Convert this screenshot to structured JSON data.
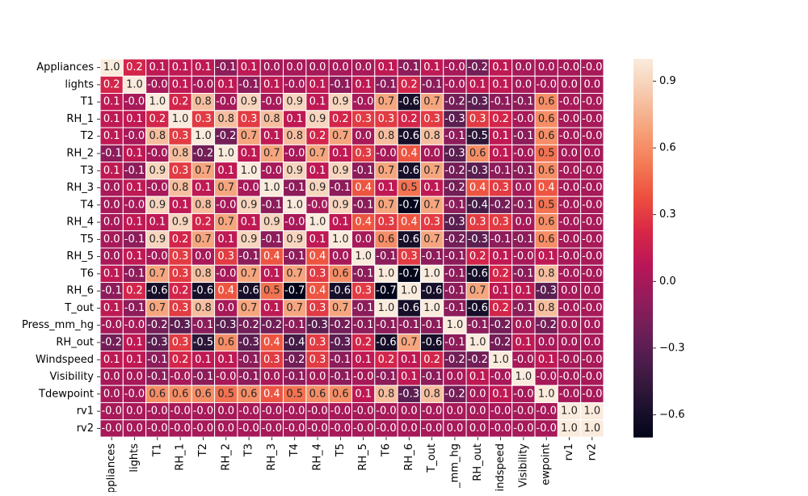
{
  "chart_data": {
    "type": "heatmap",
    "title": "",
    "xlabel": "",
    "ylabel": "",
    "row_labels": [
      "Appliances",
      "lights",
      "T1",
      "RH_1",
      "T2",
      "RH_2",
      "T3",
      "RH_3",
      "T4",
      "RH_4",
      "T5",
      "RH_5",
      "T6",
      "RH_6",
      "T_out",
      "Press_mm_hg",
      "RH_out",
      "Windspeed",
      "Visibility",
      "Tdewpoint",
      "rv1",
      "rv2"
    ],
    "col_labels": [
      "Appliances",
      "lights",
      "T1",
      "RH_1",
      "T2",
      "RH_2",
      "T3",
      "RH_3",
      "T4",
      "RH_4",
      "T5",
      "RH_5",
      "T6",
      "RH_6",
      "T_out",
      "Press_mm_hg",
      "RH_out",
      "Windspeed",
      "Visibility",
      "Tdewpoint",
      "rv1",
      "rv2"
    ],
    "col_tick_texts": [
      "ppliances",
      "lights",
      "T1",
      "RH_1",
      "T2",
      "RH_2",
      "T3",
      "RH_3",
      "T4",
      "RH_4",
      "T5",
      "RH_5",
      "T6",
      "RH_6",
      "T_out",
      "_mm_hg",
      "RH_out",
      "indspeed",
      "Visibility",
      "ewpoint",
      "rv1",
      "rv2"
    ],
    "values": [
      [
        1.0,
        0.2,
        0.1,
        0.1,
        0.1,
        -0.1,
        0.1,
        0.0,
        0.0,
        0.0,
        0.0,
        0.0,
        0.1,
        -0.1,
        0.1,
        -0.0,
        -0.2,
        0.1,
        0.0,
        0.0,
        -0.0,
        -0.0
      ],
      [
        0.2,
        1.0,
        -0.0,
        0.1,
        -0.0,
        0.1,
        -0.1,
        0.1,
        -0.0,
        0.1,
        -0.1,
        0.1,
        -0.1,
        0.2,
        -0.1,
        -0.0,
        0.1,
        0.1,
        0.0,
        -0.0,
        0.0,
        0.0
      ],
      [
        0.1,
        -0.0,
        1.0,
        0.2,
        0.8,
        -0.0,
        0.9,
        -0.0,
        0.9,
        0.1,
        0.9,
        -0.0,
        0.7,
        -0.6,
        0.7,
        -0.2,
        -0.3,
        -0.1,
        -0.1,
        0.6,
        -0.0,
        -0.0
      ],
      [
        0.1,
        0.1,
        0.2,
        1.0,
        0.3,
        0.8,
        0.3,
        0.8,
        0.1,
        0.9,
        0.2,
        0.3,
        0.3,
        0.2,
        0.3,
        -0.3,
        0.3,
        0.2,
        -0.0,
        0.6,
        -0.0,
        -0.0
      ],
      [
        0.1,
        -0.0,
        0.8,
        0.3,
        1.0,
        -0.2,
        0.7,
        0.1,
        0.8,
        0.2,
        0.7,
        0.0,
        0.8,
        -0.6,
        0.8,
        -0.1,
        -0.5,
        0.1,
        -0.1,
        0.6,
        -0.0,
        -0.0
      ],
      [
        -0.1,
        0.1,
        -0.0,
        0.8,
        -0.2,
        1.0,
        0.1,
        0.7,
        -0.0,
        0.7,
        0.1,
        0.3,
        -0.0,
        0.4,
        0.0,
        -0.3,
        0.6,
        0.1,
        -0.0,
        0.5,
        0.0,
        0.0
      ],
      [
        0.1,
        -0.1,
        0.9,
        0.3,
        0.7,
        0.1,
        1.0,
        -0.0,
        0.9,
        0.1,
        0.9,
        -0.1,
        0.7,
        -0.6,
        0.7,
        -0.2,
        -0.3,
        -0.1,
        -0.1,
        0.6,
        -0.0,
        -0.0
      ],
      [
        0.0,
        0.1,
        -0.0,
        0.8,
        0.1,
        0.7,
        -0.0,
        1.0,
        -0.1,
        0.9,
        -0.1,
        0.4,
        0.1,
        0.5,
        0.1,
        -0.2,
        0.4,
        0.3,
        0.0,
        0.4,
        -0.0,
        -0.0
      ],
      [
        0.0,
        -0.0,
        0.9,
        0.1,
        0.8,
        -0.0,
        0.9,
        -0.1,
        1.0,
        -0.0,
        0.9,
        -0.1,
        0.7,
        -0.7,
        0.7,
        -0.1,
        -0.4,
        -0.2,
        -0.1,
        0.5,
        -0.0,
        -0.0
      ],
      [
        0.0,
        0.1,
        0.1,
        0.9,
        0.2,
        0.7,
        0.1,
        0.9,
        -0.0,
        1.0,
        0.1,
        0.4,
        0.3,
        0.4,
        0.3,
        -0.3,
        0.3,
        0.3,
        0.0,
        0.6,
        -0.0,
        -0.0
      ],
      [
        0.0,
        -0.1,
        0.9,
        0.2,
        0.7,
        0.1,
        0.9,
        -0.1,
        0.9,
        0.1,
        1.0,
        0.0,
        0.6,
        -0.6,
        0.7,
        -0.2,
        -0.3,
        -0.1,
        -0.1,
        0.6,
        -0.0,
        -0.0
      ],
      [
        0.0,
        0.1,
        -0.0,
        0.3,
        0.0,
        0.3,
        -0.1,
        0.4,
        -0.1,
        0.4,
        0.0,
        1.0,
        -0.1,
        0.3,
        -0.1,
        -0.1,
        0.2,
        0.1,
        -0.0,
        0.1,
        -0.0,
        -0.0
      ],
      [
        0.1,
        -0.1,
        0.7,
        0.3,
        0.8,
        -0.0,
        0.7,
        0.1,
        0.7,
        0.3,
        0.6,
        -0.1,
        1.0,
        -0.7,
        1.0,
        -0.1,
        -0.6,
        0.2,
        -0.1,
        0.8,
        -0.0,
        -0.0
      ],
      [
        -0.1,
        0.2,
        -0.6,
        0.2,
        -0.6,
        0.4,
        -0.6,
        0.5,
        -0.7,
        0.4,
        -0.6,
        0.3,
        -0.7,
        1.0,
        -0.6,
        -0.1,
        0.7,
        0.1,
        0.1,
        -0.3,
        0.0,
        0.0
      ],
      [
        0.1,
        -0.1,
        0.7,
        0.3,
        0.8,
        0.0,
        0.7,
        0.1,
        0.7,
        0.3,
        0.7,
        -0.1,
        1.0,
        -0.6,
        1.0,
        -0.1,
        -0.6,
        0.2,
        -0.1,
        0.8,
        -0.0,
        -0.0
      ],
      [
        -0.0,
        -0.0,
        -0.2,
        -0.3,
        -0.1,
        -0.3,
        -0.2,
        -0.2,
        -0.1,
        -0.3,
        -0.2,
        -0.1,
        -0.1,
        -0.1,
        -0.1,
        1.0,
        -0.1,
        -0.2,
        0.0,
        -0.2,
        0.0,
        0.0
      ],
      [
        -0.2,
        0.1,
        -0.3,
        0.3,
        -0.5,
        0.6,
        -0.3,
        0.4,
        -0.4,
        0.3,
        -0.3,
        0.2,
        -0.6,
        0.7,
        -0.6,
        -0.1,
        1.0,
        -0.2,
        0.1,
        0.0,
        0.0,
        0.0
      ],
      [
        0.1,
        0.1,
        -0.1,
        0.2,
        0.1,
        0.1,
        -0.1,
        0.3,
        -0.2,
        0.3,
        -0.1,
        0.1,
        0.2,
        0.1,
        0.2,
        -0.2,
        -0.2,
        1.0,
        -0.0,
        0.1,
        -0.0,
        -0.0
      ],
      [
        0.0,
        0.0,
        -0.1,
        -0.0,
        -0.1,
        -0.0,
        -0.1,
        0.0,
        -0.1,
        0.0,
        -0.1,
        -0.0,
        -0.1,
        0.1,
        -0.1,
        0.0,
        0.1,
        -0.0,
        1.0,
        -0.0,
        -0.0,
        -0.0
      ],
      [
        0.0,
        -0.0,
        0.6,
        0.6,
        0.6,
        0.5,
        0.6,
        0.4,
        0.5,
        0.6,
        0.6,
        0.1,
        0.8,
        -0.3,
        0.8,
        -0.2,
        0.0,
        0.1,
        -0.0,
        1.0,
        -0.0,
        -0.0
      ],
      [
        -0.0,
        0.0,
        -0.0,
        -0.0,
        -0.0,
        0.0,
        -0.0,
        -0.0,
        -0.0,
        -0.0,
        -0.0,
        -0.0,
        -0.0,
        0.0,
        -0.0,
        0.0,
        0.0,
        -0.0,
        -0.0,
        -0.0,
        1.0,
        1.0
      ],
      [
        -0.0,
        0.0,
        -0.0,
        -0.0,
        -0.0,
        0.0,
        -0.0,
        -0.0,
        -0.0,
        -0.0,
        -0.0,
        -0.0,
        -0.0,
        0.0,
        -0.0,
        0.0,
        0.0,
        -0.0,
        -0.0,
        -0.0,
        1.0,
        1.0
      ]
    ],
    "colorbar": {
      "vmin": -0.7,
      "vmax": 1.0,
      "ticks": [
        -0.6,
        -0.3,
        0.0,
        0.3,
        0.6,
        0.9
      ],
      "tick_labels": [
        "−0.6",
        "−0.3",
        "0.0",
        "0.3",
        "0.6",
        "0.9"
      ],
      "colormap": "rocket",
      "colormap_stops": [
        "#03051a",
        "#221331",
        "#451c47",
        "#6a1f56",
        "#921c5b",
        "#b91657",
        "#d92847",
        "#ed503e",
        "#f47d57",
        "#f6a47c",
        "#f6c9ad",
        "#faebdd"
      ]
    },
    "cell_text_colors": {
      "on_dark": "#ffffff",
      "on_light": "#262626"
    },
    "annotation_format": "one_decimal",
    "grid_line_color": "#ffffff",
    "grid": false,
    "legend": "colorbar-right"
  }
}
